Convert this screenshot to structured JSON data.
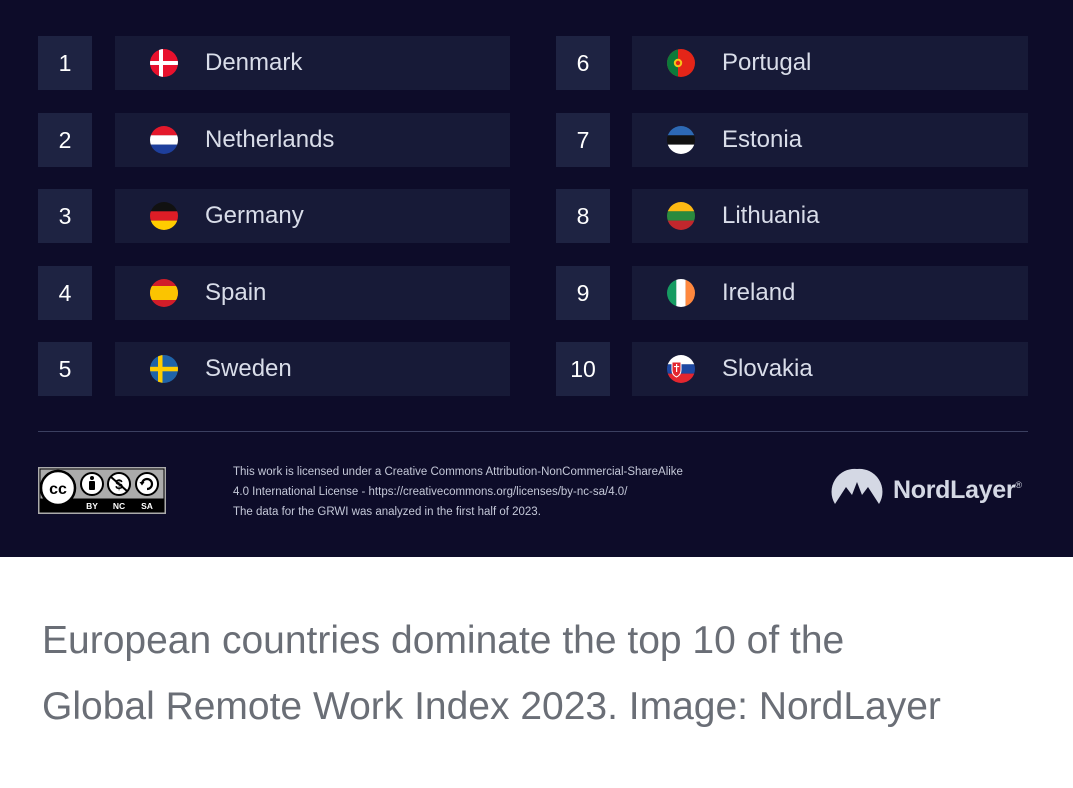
{
  "rankings": [
    {
      "rank": "1",
      "country": "Denmark",
      "flag": "denmark-flag-icon"
    },
    {
      "rank": "2",
      "country": "Netherlands",
      "flag": "netherlands-flag-icon"
    },
    {
      "rank": "3",
      "country": "Germany",
      "flag": "germany-flag-icon"
    },
    {
      "rank": "4",
      "country": "Spain",
      "flag": "spain-flag-icon"
    },
    {
      "rank": "5",
      "country": "Sweden",
      "flag": "sweden-flag-icon"
    },
    {
      "rank": "6",
      "country": "Portugal",
      "flag": "portugal-flag-icon"
    },
    {
      "rank": "7",
      "country": "Estonia",
      "flag": "estonia-flag-icon"
    },
    {
      "rank": "8",
      "country": "Lithuania",
      "flag": "lithuania-flag-icon"
    },
    {
      "rank": "9",
      "country": "Ireland",
      "flag": "ireland-flag-icon"
    },
    {
      "rank": "10",
      "country": "Slovakia",
      "flag": "slovakia-flag-icon"
    }
  ],
  "footer": {
    "license_lines": [
      "This work is licensed under a Creative Commons Attribution-NonCommercial-ShareAlike",
      "4.0 International License - https://creativecommons.org/licenses/by-nc-sa/4.0/",
      "The data for the GRWI was analyzed in the first half of 2023."
    ],
    "cc_badge": {
      "labels": [
        "BY",
        "NC",
        "SA"
      ],
      "icon": "creative-commons-badge-icon"
    },
    "brand": {
      "name": "NordLayer",
      "mark": "®",
      "icon": "nordlayer-mountain-icon"
    }
  },
  "caption": {
    "line1": "European countries dominate the top 10 of the",
    "line2": "Global Remote Work Index 2023. Image: NordLayer"
  },
  "colors": {
    "panel_background": "#0d0c29",
    "rank_box": "#1e2342",
    "country_box": "#171a37",
    "caption_text": "#6a6e76"
  }
}
